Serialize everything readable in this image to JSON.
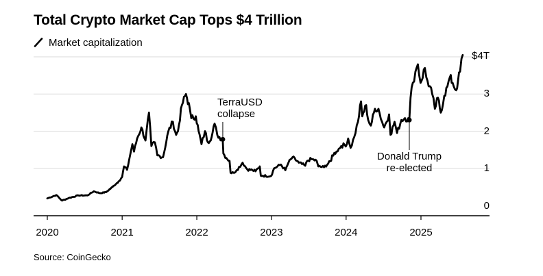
{
  "title": "Total Crypto Market Cap Tops $4 Trillion",
  "legend": {
    "label": "Market capitalization"
  },
  "source": "Source: CoinGecko",
  "colors": {
    "line": "#000000",
    "grid": "#d9d9d9",
    "axis": "#000000",
    "text": "#000000"
  },
  "chart_data": {
    "type": "line",
    "title": "Total Crypto Market Cap Tops $4 Trillion",
    "ylabel": "",
    "xlabel": "",
    "y_unit": "trillion USD",
    "ylim": [
      0,
      4
    ],
    "xlim": [
      "2020-01-01",
      "2025-09-01"
    ],
    "grid": true,
    "legend_placement": "top-left",
    "x_ticks": [
      "2020",
      "2021",
      "2022",
      "2023",
      "2024",
      "2025"
    ],
    "y_ticks": [
      {
        "value": 0,
        "label": "0"
      },
      {
        "value": 1,
        "label": "1"
      },
      {
        "value": 2,
        "label": "2"
      },
      {
        "value": 3,
        "label": "3"
      },
      {
        "value": 4,
        "label": "$4T"
      }
    ],
    "series": [
      {
        "name": "Market capitalization",
        "points": [
          [
            "2020-01-01",
            0.19
          ],
          [
            "2020-02-14",
            0.28
          ],
          [
            "2020-03-13",
            0.13
          ],
          [
            "2020-04-15",
            0.2
          ],
          [
            "2020-06-01",
            0.27
          ],
          [
            "2020-07-15",
            0.27
          ],
          [
            "2020-08-15",
            0.38
          ],
          [
            "2020-09-15",
            0.33
          ],
          [
            "2020-10-15",
            0.36
          ],
          [
            "2020-11-15",
            0.5
          ],
          [
            "2020-12-15",
            0.65
          ],
          [
            "2021-01-01",
            0.77
          ],
          [
            "2021-01-10",
            1.05
          ],
          [
            "2021-01-25",
            0.96
          ],
          [
            "2021-02-20",
            1.65
          ],
          [
            "2021-02-28",
            1.45
          ],
          [
            "2021-03-15",
            1.8
          ],
          [
            "2021-04-05",
            2.1
          ],
          [
            "2021-04-25",
            1.75
          ],
          [
            "2021-05-12",
            2.5
          ],
          [
            "2021-05-24",
            1.6
          ],
          [
            "2021-06-10",
            1.7
          ],
          [
            "2021-06-22",
            1.35
          ],
          [
            "2021-07-20",
            1.3
          ],
          [
            "2021-08-15",
            2.0
          ],
          [
            "2021-09-06",
            2.25
          ],
          [
            "2021-09-22",
            1.9
          ],
          [
            "2021-10-01",
            2.0
          ],
          [
            "2021-10-20",
            2.7
          ],
          [
            "2021-11-09",
            3.0
          ],
          [
            "2021-11-28",
            2.6
          ],
          [
            "2021-12-05",
            2.35
          ],
          [
            "2021-12-27",
            2.4
          ],
          [
            "2022-01-10",
            2.0
          ],
          [
            "2022-01-24",
            1.65
          ],
          [
            "2022-02-10",
            2.0
          ],
          [
            "2022-02-24",
            1.7
          ],
          [
            "2022-03-15",
            1.85
          ],
          [
            "2022-03-29",
            2.2
          ],
          [
            "2022-04-11",
            1.9
          ],
          [
            "2022-05-08",
            1.75
          ],
          [
            "2022-05-11",
            1.4
          ],
          [
            "2022-05-25",
            1.28
          ],
          [
            "2022-06-10",
            1.2
          ],
          [
            "2022-06-15",
            0.88
          ],
          [
            "2022-06-30",
            0.88
          ],
          [
            "2022-07-15",
            0.95
          ],
          [
            "2022-08-13",
            1.15
          ],
          [
            "2022-09-05",
            0.97
          ],
          [
            "2022-09-30",
            0.95
          ],
          [
            "2022-10-15",
            0.92
          ],
          [
            "2022-11-05",
            1.05
          ],
          [
            "2022-11-10",
            0.8
          ],
          [
            "2022-11-20",
            0.8
          ],
          [
            "2022-12-30",
            0.79
          ],
          [
            "2023-01-14",
            1.0
          ],
          [
            "2023-02-16",
            1.1
          ],
          [
            "2023-03-10",
            0.95
          ],
          [
            "2023-03-25",
            1.15
          ],
          [
            "2023-04-14",
            1.3
          ],
          [
            "2023-05-15",
            1.15
          ],
          [
            "2023-06-15",
            1.07
          ],
          [
            "2023-06-25",
            1.2
          ],
          [
            "2023-07-15",
            1.25
          ],
          [
            "2023-08-10",
            1.2
          ],
          [
            "2023-08-18",
            1.05
          ],
          [
            "2023-09-15",
            1.03
          ],
          [
            "2023-10-20",
            1.2
          ],
          [
            "2023-10-25",
            1.35
          ],
          [
            "2023-11-15",
            1.45
          ],
          [
            "2023-12-08",
            1.6
          ],
          [
            "2024-01-05",
            1.65
          ],
          [
            "2024-01-11",
            1.8
          ],
          [
            "2024-01-23",
            1.55
          ],
          [
            "2024-02-10",
            1.85
          ],
          [
            "2024-02-28",
            2.25
          ],
          [
            "2024-03-14",
            2.8
          ],
          [
            "2024-03-20",
            2.4
          ],
          [
            "2024-04-08",
            2.7
          ],
          [
            "2024-04-18",
            2.3
          ],
          [
            "2024-05-01",
            2.15
          ],
          [
            "2024-05-21",
            2.6
          ],
          [
            "2024-06-07",
            2.6
          ],
          [
            "2024-06-25",
            2.25
          ],
          [
            "2024-07-05",
            2.1
          ],
          [
            "2024-07-29",
            2.45
          ],
          [
            "2024-08-05",
            1.9
          ],
          [
            "2024-08-25",
            2.25
          ],
          [
            "2024-09-06",
            1.95
          ],
          [
            "2024-09-27",
            2.3
          ],
          [
            "2024-10-15",
            2.35
          ],
          [
            "2024-11-05",
            2.3
          ],
          [
            "2024-11-11",
            2.9
          ],
          [
            "2024-11-22",
            3.3
          ],
          [
            "2024-12-05",
            3.6
          ],
          [
            "2024-12-17",
            3.8
          ],
          [
            "2024-12-30",
            3.3
          ],
          [
            "2025-01-20",
            3.7
          ],
          [
            "2025-01-27",
            3.45
          ],
          [
            "2025-02-25",
            3.0
          ],
          [
            "2025-03-10",
            2.6
          ],
          [
            "2025-03-25",
            2.9
          ],
          [
            "2025-04-08",
            2.5
          ],
          [
            "2025-04-25",
            2.95
          ],
          [
            "2025-05-10",
            3.2
          ],
          [
            "2025-05-22",
            3.45
          ],
          [
            "2025-06-05",
            3.3
          ],
          [
            "2025-06-22",
            3.1
          ],
          [
            "2025-07-01",
            3.35
          ],
          [
            "2025-07-11",
            3.6
          ],
          [
            "2025-07-18",
            3.95
          ],
          [
            "2025-07-24",
            4.05
          ]
        ]
      }
    ],
    "annotations": [
      {
        "lines": [
          "TerraUSD",
          "collapse"
        ],
        "x": "2022-05-08",
        "y": 1.78
      },
      {
        "lines": [
          "Donald Trump",
          "re-elected"
        ],
        "x": "2024-11-05",
        "y": 2.3
      }
    ]
  }
}
